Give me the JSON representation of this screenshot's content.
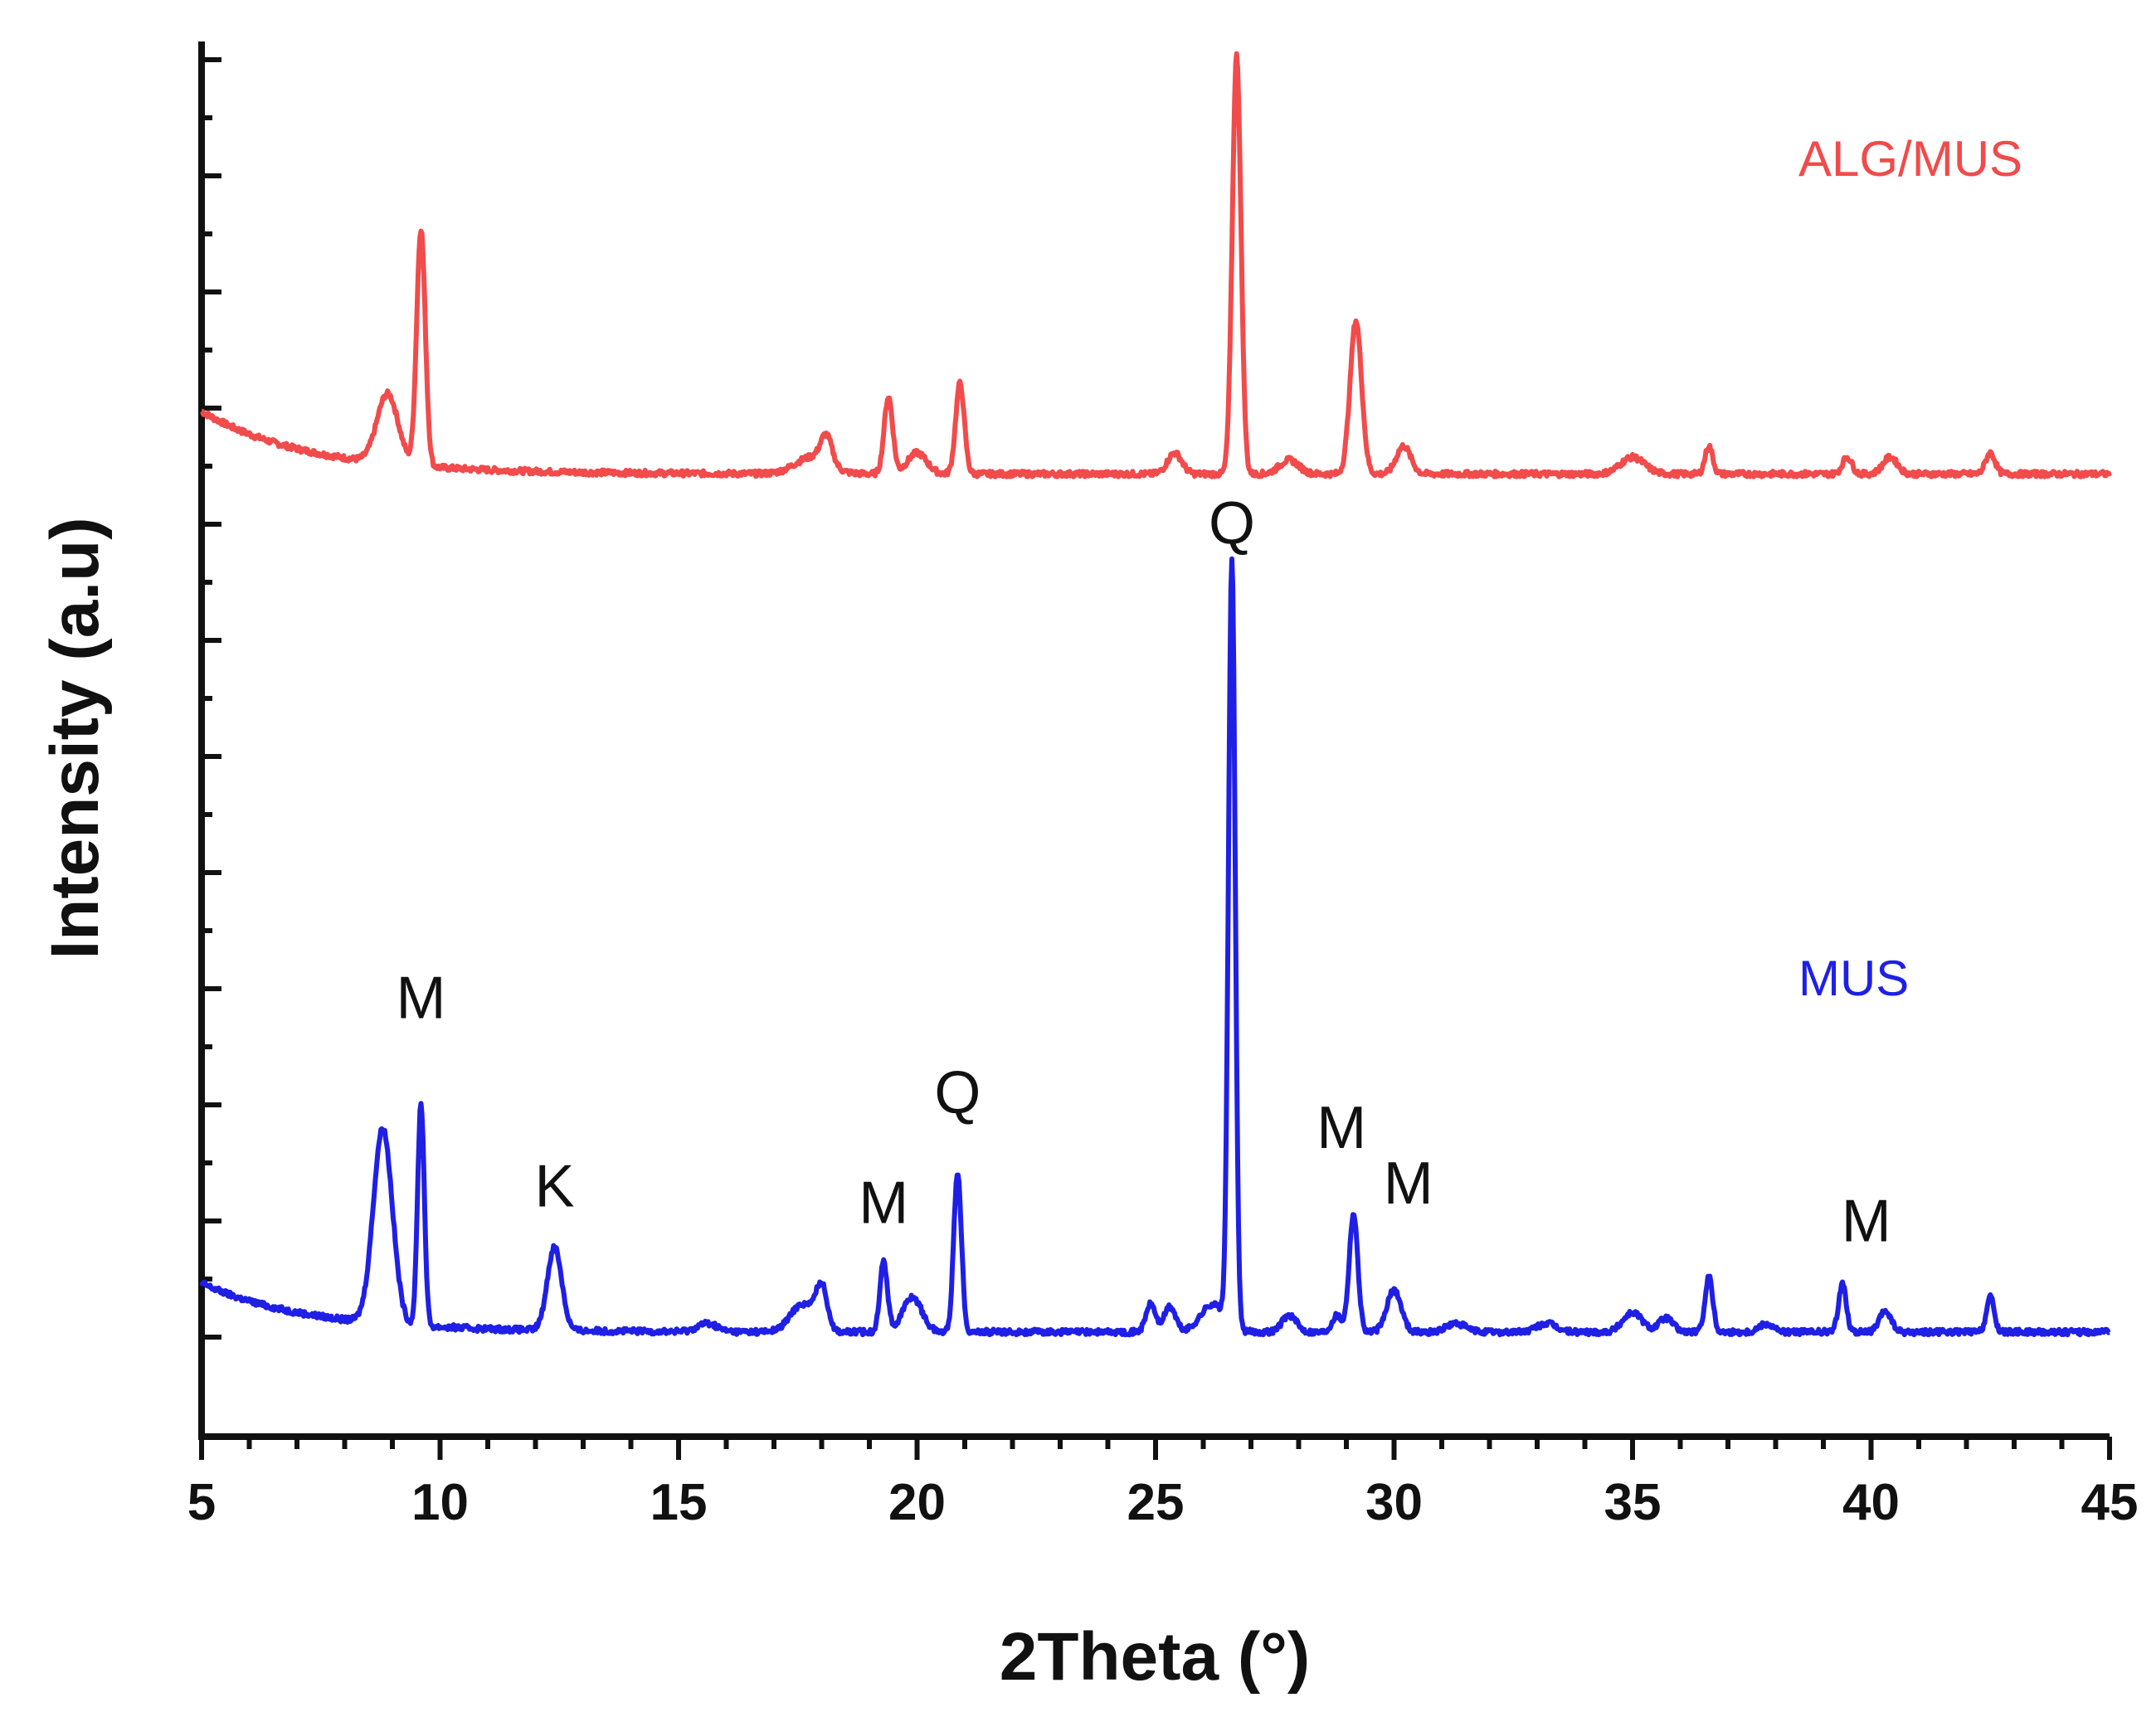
{
  "chart_data": {
    "type": "line",
    "xlabel": "2Theta (°)",
    "ylabel": "Intensity (a.u)",
    "xlim": [
      5,
      45
    ],
    "ylim": [
      0,
      1
    ],
    "grid": false,
    "x_ticks": [
      5,
      10,
      15,
      20,
      25,
      30,
      35,
      40,
      45
    ],
    "y_tick_labels_shown": false,
    "series": [
      {
        "name": "ALG/MUS",
        "color": "#f14b4b",
        "baseline_start": 0.735,
        "baseline": 0.69,
        "peaks": [
          {
            "x": 8.9,
            "height": 0.05,
            "width": 0.22
          },
          {
            "x": 9.6,
            "height": 0.17,
            "width": 0.09
          },
          {
            "x": 17.8,
            "height": 0.012,
            "width": 0.35
          },
          {
            "x": 18.1,
            "height": 0.02,
            "width": 0.12
          },
          {
            "x": 19.4,
            "height": 0.055,
            "width": 0.09
          },
          {
            "x": 20.0,
            "height": 0.015,
            "width": 0.2
          },
          {
            "x": 20.9,
            "height": 0.065,
            "width": 0.09
          },
          {
            "x": 25.4,
            "height": 0.015,
            "width": 0.15
          },
          {
            "x": 26.7,
            "height": 0.3,
            "width": 0.09
          },
          {
            "x": 27.8,
            "height": 0.01,
            "width": 0.2
          },
          {
            "x": 29.2,
            "height": 0.11,
            "width": 0.12
          },
          {
            "x": 30.2,
            "height": 0.02,
            "width": 0.15
          },
          {
            "x": 35.0,
            "height": 0.012,
            "width": 0.25
          },
          {
            "x": 36.6,
            "height": 0.02,
            "width": 0.08
          },
          {
            "x": 39.5,
            "height": 0.012,
            "width": 0.1
          },
          {
            "x": 40.4,
            "height": 0.012,
            "width": 0.15
          },
          {
            "x": 42.5,
            "height": 0.015,
            "width": 0.1
          }
        ]
      },
      {
        "name": "MUS",
        "color": "#1f1fe6",
        "baseline_start": 0.11,
        "baseline": 0.075,
        "peaks": [
          {
            "x": 8.8,
            "height": 0.14,
            "width": 0.2
          },
          {
            "x": 9.6,
            "height": 0.16,
            "width": 0.07
          },
          {
            "x": 12.4,
            "height": 0.06,
            "width": 0.15
          },
          {
            "x": 15.6,
            "height": 0.006,
            "width": 0.2
          },
          {
            "x": 17.6,
            "height": 0.02,
            "width": 0.25
          },
          {
            "x": 18.0,
            "height": 0.03,
            "width": 0.12
          },
          {
            "x": 19.3,
            "height": 0.05,
            "width": 0.08
          },
          {
            "x": 19.9,
            "height": 0.025,
            "width": 0.2
          },
          {
            "x": 20.85,
            "height": 0.115,
            "width": 0.08
          },
          {
            "x": 24.9,
            "height": 0.02,
            "width": 0.1
          },
          {
            "x": 25.3,
            "height": 0.018,
            "width": 0.12
          },
          {
            "x": 26.6,
            "height": 0.55,
            "width": 0.07
          },
          {
            "x": 26.2,
            "height": 0.02,
            "width": 0.25
          },
          {
            "x": 27.8,
            "height": 0.012,
            "width": 0.15
          },
          {
            "x": 28.8,
            "height": 0.012,
            "width": 0.1
          },
          {
            "x": 29.15,
            "height": 0.085,
            "width": 0.09
          },
          {
            "x": 30.0,
            "height": 0.03,
            "width": 0.15
          },
          {
            "x": 31.3,
            "height": 0.006,
            "width": 0.2
          },
          {
            "x": 33.2,
            "height": 0.006,
            "width": 0.2
          },
          {
            "x": 35.0,
            "height": 0.014,
            "width": 0.2
          },
          {
            "x": 35.7,
            "height": 0.01,
            "width": 0.15
          },
          {
            "x": 36.6,
            "height": 0.04,
            "width": 0.08
          },
          {
            "x": 37.8,
            "height": 0.006,
            "width": 0.15
          },
          {
            "x": 39.4,
            "height": 0.035,
            "width": 0.08
          },
          {
            "x": 40.3,
            "height": 0.015,
            "width": 0.12
          },
          {
            "x": 42.5,
            "height": 0.025,
            "width": 0.08
          }
        ]
      }
    ],
    "series_labels": [
      {
        "text": "ALG/MUS",
        "series": 0
      },
      {
        "text": "MUS",
        "series": 1
      }
    ],
    "peak_annotations": [
      {
        "text": "M",
        "x": 9.6,
        "y": 0.3
      },
      {
        "text": "K",
        "x": 12.4,
        "y": 0.165
      },
      {
        "text": "M",
        "x": 19.3,
        "y": 0.153
      },
      {
        "text": "Q",
        "x": 20.85,
        "y": 0.232
      },
      {
        "text": "Q",
        "x": 26.6,
        "y": 0.64
      },
      {
        "text": "M",
        "x": 28.9,
        "y": 0.207
      },
      {
        "text": "M",
        "x": 30.3,
        "y": 0.167
      },
      {
        "text": "M",
        "x": 39.9,
        "y": 0.14
      }
    ]
  }
}
